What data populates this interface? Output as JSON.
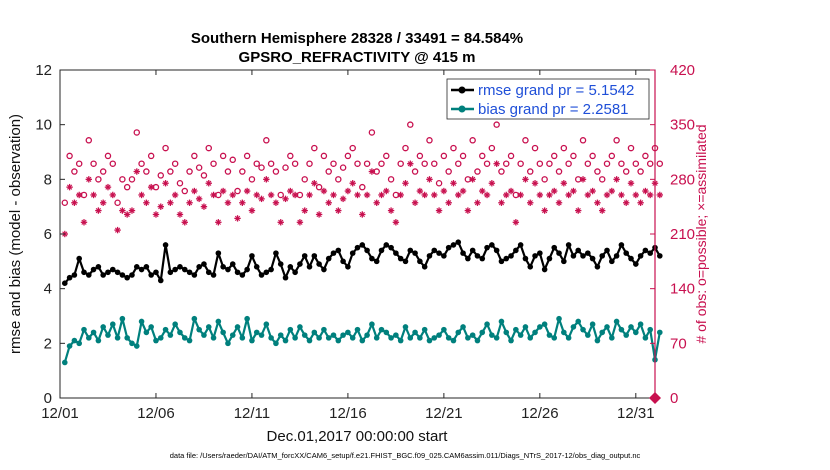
{
  "chart_data": {
    "type": "line",
    "title_line1": "Southern Hemisphere 28328 / 33491 = 84.584%",
    "title_line2": "GPSRO_REFRACTIVITY @ 415 m",
    "xlabel": "Dec.01,2017 00:00:00 start",
    "ylabel_left": "rmse and bias (model - observation)",
    "ylabel_right": "# of obs: o=possible; ×=assimilated",
    "footer": "data file: /Users/raeder/DAI/ATM_forcXX/CAM6_setup/f.e21.FHIST_BGC.f09_025.CAM6assim.011/Diags_NTrS_2017-12/obs_diag_output.nc",
    "x_range": [
      1,
      32
    ],
    "ylim_left": [
      0,
      12
    ],
    "ylim_right": [
      0,
      420
    ],
    "x_ticks": [
      1,
      6,
      11,
      16,
      21,
      26,
      31
    ],
    "x_tick_labels": [
      "12/01",
      "12/06",
      "12/11",
      "12/16",
      "12/21",
      "12/26",
      "12/31"
    ],
    "y_ticks_left": [
      0,
      2,
      4,
      6,
      8,
      10,
      12
    ],
    "y_tick_labels_left": [
      "0",
      "2",
      "4",
      "6",
      "8",
      "10",
      "12"
    ],
    "y_ticks_right": [
      0,
      70,
      140,
      210,
      280,
      350,
      420
    ],
    "y_tick_labels_right": [
      "0",
      "70",
      "140",
      "210",
      "280",
      "350",
      "420"
    ],
    "legend": [
      {
        "label": "rmse grand pr = 5.1542",
        "color": "#000000"
      },
      {
        "label": "bias grand pr = 2.2581",
        "color": "#00807d"
      }
    ],
    "colors": {
      "rmse": "#000000",
      "bias": "#00807d",
      "obs": "#c8104f"
    },
    "x_step_days": 0.25,
    "rmse": [
      4.2,
      4.4,
      4.5,
      5.1,
      4.6,
      4.5,
      4.7,
      4.8,
      4.5,
      4.6,
      4.7,
      4.6,
      4.5,
      4.4,
      4.5,
      4.8,
      4.7,
      4.8,
      4.5,
      4.6,
      4.3,
      5.6,
      4.6,
      4.7,
      4.8,
      4.7,
      4.6,
      4.5,
      4.8,
      4.9,
      4.6,
      4.5,
      5.3,
      4.8,
      4.7,
      4.9,
      4.6,
      4.5,
      4.7,
      5.2,
      4.8,
      4.5,
      4.6,
      4.7,
      5.3,
      4.9,
      4.4,
      4.8,
      4.6,
      4.9,
      5.2,
      4.8,
      5.2,
      4.9,
      4.7,
      5.1,
      5.3,
      5.4,
      5.0,
      4.8,
      5.3,
      5.5,
      5.6,
      5.4,
      5.1,
      5.0,
      5.4,
      5.6,
      5.5,
      5.3,
      5.1,
      5.0,
      5.4,
      5.3,
      5.0,
      4.8,
      5.2,
      5.4,
      5.3,
      5.2,
      5.5,
      5.6,
      5.7,
      5.3,
      5.1,
      5.4,
      5.2,
      5.1,
      5.5,
      5.6,
      5.4,
      5.0,
      5.1,
      5.2,
      5.4,
      5.6,
      5.1,
      4.8,
      5.2,
      5.3,
      4.7,
      5.1,
      5.5,
      5.3,
      5.0,
      5.6,
      5.2,
      5.4,
      5.2,
      5.3,
      5.1,
      4.8,
      5.2,
      5.4,
      5.0,
      5.2,
      5.6,
      5.3,
      5.1,
      4.9,
      5.2,
      5.4,
      5.3,
      5.5,
      5.2
    ],
    "bias": [
      1.3,
      1.9,
      2.1,
      2.0,
      2.5,
      2.2,
      2.4,
      2.1,
      2.6,
      2.3,
      2.7,
      2.2,
      2.9,
      2.2,
      2.0,
      1.9,
      2.8,
      2.4,
      2.6,
      2.1,
      2.2,
      2.5,
      2.3,
      2.7,
      2.4,
      2.2,
      2.1,
      2.9,
      2.5,
      2.3,
      2.6,
      2.2,
      2.8,
      2.4,
      2.0,
      2.3,
      2.6,
      2.2,
      2.9,
      2.1,
      2.4,
      2.3,
      2.7,
      2.2,
      2.0,
      2.3,
      2.1,
      2.5,
      2.2,
      2.6,
      2.3,
      2.1,
      2.4,
      2.2,
      2.5,
      2.2,
      2.3,
      2.1,
      2.3,
      2.4,
      2.2,
      2.5,
      2.1,
      2.3,
      2.7,
      2.2,
      2.5,
      2.4,
      2.2,
      2.3,
      2.1,
      2.6,
      2.2,
      2.4,
      2.2,
      2.5,
      2.1,
      2.2,
      2.3,
      2.5,
      2.2,
      2.1,
      2.4,
      2.6,
      2.2,
      2.3,
      2.1,
      2.4,
      2.7,
      2.3,
      2.2,
      2.8,
      2.4,
      2.1,
      2.5,
      2.3,
      2.6,
      2.2,
      2.4,
      2.6,
      2.7,
      2.3,
      2.2,
      2.9,
      2.4,
      2.2,
      2.6,
      2.8,
      2.5,
      2.3,
      2.7,
      2.1,
      2.4,
      2.6,
      2.2,
      2.8,
      2.5,
      2.3,
      2.6,
      2.4,
      2.7,
      2.2,
      2.5,
      1.4,
      2.4
    ],
    "obs_possible": [
      250,
      310,
      290,
      300,
      260,
      330,
      300,
      280,
      290,
      310,
      300,
      250,
      280,
      270,
      280,
      340,
      300,
      290,
      310,
      270,
      285,
      320,
      290,
      300,
      275,
      265,
      290,
      310,
      295,
      285,
      320,
      300,
      260,
      310,
      290,
      305,
      265,
      290,
      310,
      280,
      300,
      295,
      330,
      300,
      290,
      260,
      295,
      310,
      300,
      260,
      280,
      300,
      320,
      270,
      310,
      290,
      300,
      280,
      295,
      310,
      320,
      300,
      270,
      300,
      340,
      290,
      300,
      310,
      280,
      260,
      300,
      320,
      350,
      290,
      310,
      300,
      330,
      300,
      275,
      310,
      290,
      320,
      300,
      310,
      280,
      330,
      290,
      310,
      300,
      320,
      350,
      290,
      300,
      310,
      260,
      300,
      330,
      290,
      320,
      300,
      280,
      300,
      310,
      290,
      320,
      300,
      310,
      280,
      330,
      300,
      310,
      290,
      280,
      300,
      310,
      330,
      300,
      290,
      320,
      300,
      290,
      310,
      300,
      320,
      300
    ],
    "obs_assimilated": [
      210,
      270,
      250,
      260,
      225,
      280,
      260,
      240,
      250,
      270,
      260,
      215,
      240,
      235,
      240,
      290,
      260,
      250,
      270,
      235,
      245,
      275,
      250,
      260,
      235,
      225,
      250,
      265,
      255,
      245,
      275,
      260,
      225,
      265,
      250,
      260,
      230,
      250,
      265,
      240,
      260,
      255,
      280,
      260,
      250,
      225,
      255,
      265,
      260,
      225,
      240,
      260,
      275,
      235,
      265,
      250,
      260,
      240,
      255,
      265,
      275,
      260,
      235,
      260,
      290,
      250,
      260,
      265,
      240,
      225,
      260,
      275,
      300,
      250,
      265,
      260,
      280,
      260,
      240,
      265,
      250,
      275,
      260,
      265,
      240,
      280,
      250,
      265,
      260,
      275,
      300,
      250,
      260,
      265,
      225,
      260,
      280,
      250,
      275,
      260,
      240,
      260,
      265,
      250,
      275,
      260,
      265,
      240,
      280,
      260,
      265,
      250,
      240,
      260,
      265,
      280,
      260,
      250,
      275,
      260,
      250,
      265,
      260,
      275,
      260
    ]
  }
}
